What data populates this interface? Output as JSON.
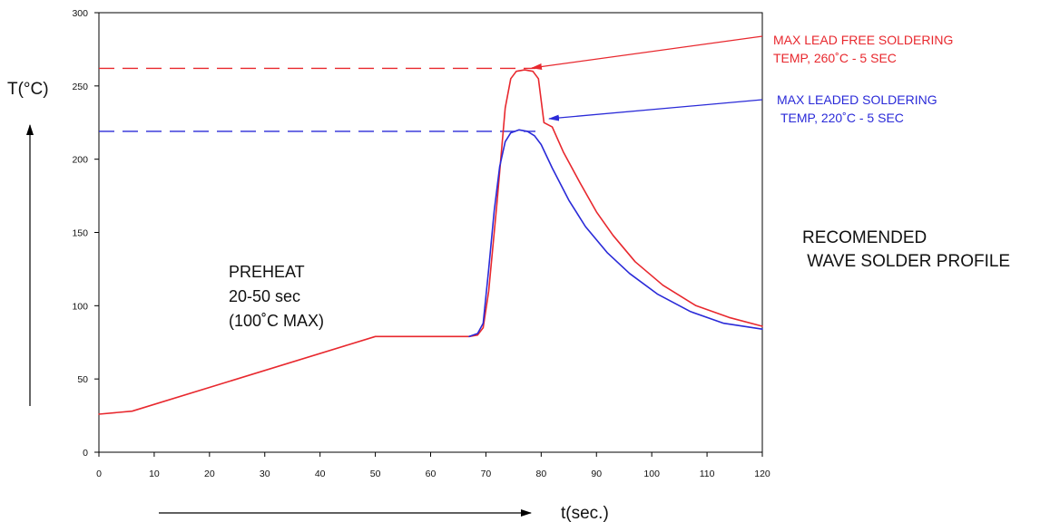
{
  "colors": {
    "lead_free": "#e8282e",
    "leaded": "#2a2ad8",
    "axis": "#000000",
    "text": "#111111"
  },
  "chart_data": {
    "type": "line",
    "xlabel": "t(sec.)",
    "ylabel": "T(°C)",
    "xlim": [
      0,
      120
    ],
    "ylim": [
      0,
      300
    ],
    "x_ticks": [
      0,
      10,
      20,
      30,
      40,
      50,
      60,
      70,
      80,
      90,
      100,
      110,
      120
    ],
    "y_ticks": [
      0,
      50,
      100,
      150,
      200,
      250,
      300
    ],
    "grid": false,
    "series": [
      {
        "name": "MAX LEAD FREE SOLDERING TEMP, 260˚C - 5 SEC",
        "color": "#e8282e",
        "x": [
          0,
          6,
          50,
          67,
          68.5,
          69.5,
          70.5,
          72,
          73.5,
          74.5,
          75.5,
          77,
          78.5,
          79.5,
          80.5,
          82,
          84,
          87,
          90,
          93,
          97,
          102,
          108,
          114,
          120
        ],
        "y": [
          26,
          28,
          79,
          79,
          80,
          85,
          110,
          170,
          235,
          255,
          260,
          261,
          260,
          255,
          225,
          222,
          205,
          184,
          164,
          148,
          130,
          114,
          100,
          92,
          86
        ]
      },
      {
        "name": "MAX LEADED SOLDERING TEMP, 220˚C - 5 SEC",
        "color": "#2a2ad8",
        "x": [
          67,
          68.5,
          69.5,
          70.5,
          71.5,
          72.5,
          73.5,
          74.5,
          76,
          77.5,
          78.8,
          80,
          82,
          85,
          88,
          92,
          96,
          101,
          107,
          113,
          120
        ],
        "y": [
          79,
          81,
          88,
          125,
          165,
          195,
          212,
          218,
          220,
          219,
          216,
          210,
          194,
          172,
          154,
          136,
          122,
          108,
          96,
          88,
          84
        ]
      }
    ],
    "reference_lines": [
      {
        "y": 262,
        "color": "#e8282e",
        "style": "dashed"
      },
      {
        "y": 219,
        "color": "#2a2ad8",
        "style": "dashed"
      }
    ],
    "annotations": [
      {
        "lines": [
          "MAX LEAD FREE SOLDERING",
          "TEMP, 260˚C - 5 SEC"
        ],
        "color": "#e8282e",
        "points_to": {
          "x": 78,
          "y": 262
        }
      },
      {
        "lines": [
          "MAX LEADED SOLDERING",
          "TEMP, 220˚C - 5 SEC"
        ],
        "color": "#2a2ad8",
        "points_to": {
          "x": 81,
          "y": 227
        }
      },
      {
        "lines": [
          "PREHEAT",
          "20-50 sec",
          "(100˚C MAX)"
        ],
        "color": "#111111"
      },
      {
        "lines": [
          "RECOMENDED",
          " WAVE SOLDER PROFILE"
        ],
        "color": "#111111"
      }
    ]
  }
}
